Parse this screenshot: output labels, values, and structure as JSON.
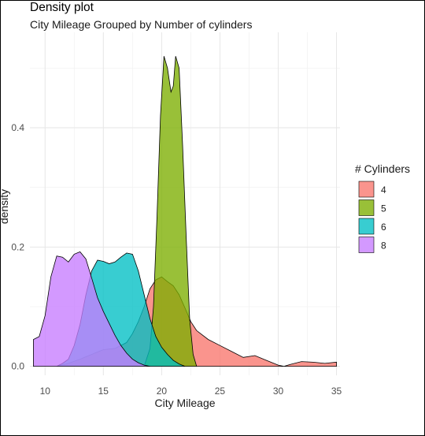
{
  "chart_data": {
    "type": "area",
    "title": "Density plot",
    "subtitle": "City Mileage Grouped by Number of cylinders",
    "xlabel": "City Mileage",
    "ylabel": "density",
    "xlim": [
      8.7,
      35.3
    ],
    "ylim": [
      -0.015,
      0.56
    ],
    "x_ticks": [
      10,
      15,
      20,
      25,
      30,
      35
    ],
    "y_ticks": [
      0.0,
      0.2,
      0.4
    ],
    "grid": true,
    "legend": {
      "title": "# Cylinders",
      "position": "right",
      "entries": [
        "4",
        "5",
        "6",
        "8"
      ]
    },
    "series": [
      {
        "name": "4",
        "color": "#F8766D",
        "x": [
          11,
          12,
          13,
          14,
          15,
          16,
          17,
          17.5,
          18,
          18.5,
          19,
          19.5,
          20,
          20.5,
          21,
          21.5,
          22,
          22.5,
          23,
          24,
          25,
          26,
          27,
          28,
          29,
          30,
          30.5,
          31,
          32,
          33,
          34,
          35
        ],
        "y": [
          0.0,
          0.005,
          0.012,
          0.02,
          0.028,
          0.03,
          0.04,
          0.055,
          0.075,
          0.1,
          0.13,
          0.145,
          0.15,
          0.142,
          0.135,
          0.12,
          0.098,
          0.075,
          0.06,
          0.045,
          0.035,
          0.025,
          0.015,
          0.018,
          0.01,
          0.002,
          0.0,
          0.003,
          0.008,
          0.007,
          0.005,
          0.007
        ]
      },
      {
        "name": "5",
        "color": "#7CAE00",
        "x": [
          18.5,
          19,
          19.3,
          19.6,
          19.9,
          20.2,
          20.5,
          20.8,
          21.0,
          21.2,
          21.5,
          21.8,
          22.1,
          22.4,
          22.7,
          23.0
        ],
        "y": [
          0.0,
          0.03,
          0.1,
          0.25,
          0.42,
          0.52,
          0.5,
          0.46,
          0.47,
          0.52,
          0.5,
          0.37,
          0.22,
          0.08,
          0.02,
          0.0
        ]
      },
      {
        "name": "6",
        "color": "#00BFC4",
        "x": [
          11,
          11.5,
          12,
          12.5,
          13,
          13.5,
          14,
          14.5,
          15,
          15.5,
          16,
          16.5,
          17,
          17.5,
          18,
          18.5,
          19,
          19.5,
          20,
          20.5,
          21,
          21.5,
          22
        ],
        "y": [
          0.0,
          0.005,
          0.012,
          0.035,
          0.07,
          0.12,
          0.16,
          0.178,
          0.176,
          0.172,
          0.175,
          0.183,
          0.19,
          0.188,
          0.16,
          0.12,
          0.08,
          0.05,
          0.032,
          0.02,
          0.01,
          0.004,
          0.0
        ]
      },
      {
        "name": "8",
        "color": "#C77CFF",
        "x": [
          9,
          9.5,
          10,
          10.5,
          11,
          11.5,
          12,
          12.5,
          13,
          13.5,
          14,
          14.5,
          15,
          15.5,
          16,
          16.5,
          17,
          17.5,
          18,
          18.5,
          19
        ],
        "y": [
          0.045,
          0.05,
          0.085,
          0.15,
          0.185,
          0.183,
          0.175,
          0.188,
          0.192,
          0.18,
          0.148,
          0.115,
          0.092,
          0.072,
          0.052,
          0.035,
          0.022,
          0.012,
          0.006,
          0.002,
          0.0
        ]
      }
    ]
  }
}
